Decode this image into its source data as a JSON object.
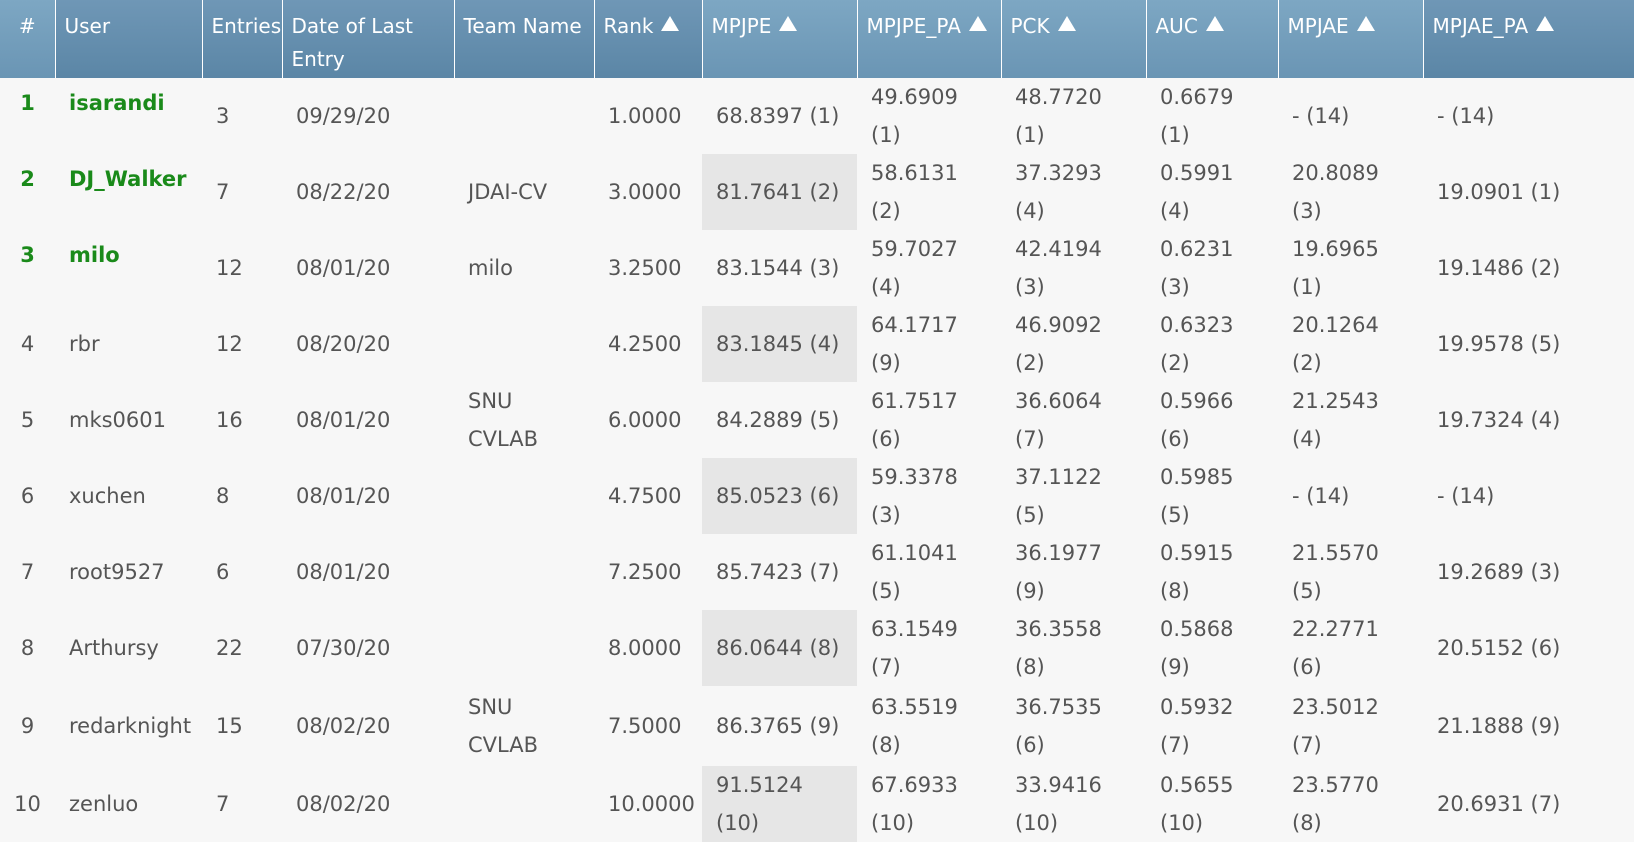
{
  "headers": [
    {
      "label": "#",
      "sortable": false
    },
    {
      "label": "User",
      "sortable": false
    },
    {
      "label": "Entries",
      "sortable": false
    },
    {
      "label": "Date of Last Entry",
      "sortable": false
    },
    {
      "label": "Team Name",
      "sortable": false
    },
    {
      "label": "Rank",
      "sortable": true
    },
    {
      "label": "MPJPE",
      "sortable": true
    },
    {
      "label": "MPJPE_PA",
      "sortable": true
    },
    {
      "label": "PCK",
      "sortable": true
    },
    {
      "label": "AUC",
      "sortable": true
    },
    {
      "label": "MPJAE",
      "sortable": true
    },
    {
      "label": "MPJAE_PA",
      "sortable": true
    }
  ],
  "rows": [
    {
      "num": "1",
      "user": "isarandi",
      "entries": "3",
      "date": "09/29/20",
      "team": "",
      "rank": "1.0000",
      "mpjpe": "68.8397 (1)",
      "mpjpe_pa": "49.6909 (1)",
      "pck": "48.7720 (1)",
      "auc": "0.6679 (1)",
      "mpjae": "- (14)",
      "mpjae_pa": "- (14)",
      "top": true
    },
    {
      "num": "2",
      "user": "DJ_Walker",
      "entries": "7",
      "date": "08/22/20",
      "team": "JDAI-CV",
      "rank": "3.0000",
      "mpjpe": "81.7641 (2)",
      "mpjpe_pa": "58.6131 (2)",
      "pck": "37.3293 (4)",
      "auc": "0.5991 (4)",
      "mpjae": "20.8089 (3)",
      "mpjae_pa": "19.0901 (1)",
      "top": true
    },
    {
      "num": "3",
      "user": "milo",
      "entries": "12",
      "date": "08/01/20",
      "team": "milo",
      "rank": "3.2500",
      "mpjpe": "83.1544 (3)",
      "mpjpe_pa": "59.7027 (4)",
      "pck": "42.4194 (3)",
      "auc": "0.6231 (3)",
      "mpjae": "19.6965 (1)",
      "mpjae_pa": "19.1486 (2)",
      "top": true
    },
    {
      "num": "4",
      "user": "rbr",
      "entries": "12",
      "date": "08/20/20",
      "team": "",
      "rank": "4.2500",
      "mpjpe": "83.1845 (4)",
      "mpjpe_pa": "64.1717 (9)",
      "pck": "46.9092 (2)",
      "auc": "0.6323 (2)",
      "mpjae": "20.1264 (2)",
      "mpjae_pa": "19.9578 (5)",
      "top": false
    },
    {
      "num": "5",
      "user": "mks0601",
      "entries": "16",
      "date": "08/01/20",
      "team": "SNU CVLAB",
      "rank": "6.0000",
      "mpjpe": "84.2889 (5)",
      "mpjpe_pa": "61.7517 (6)",
      "pck": "36.6064 (7)",
      "auc": "0.5966 (6)",
      "mpjae": "21.2543 (4)",
      "mpjae_pa": "19.7324 (4)",
      "top": false
    },
    {
      "num": "6",
      "user": "xuchen",
      "entries": "8",
      "date": "08/01/20",
      "team": "",
      "rank": "4.7500",
      "mpjpe": "85.0523 (6)",
      "mpjpe_pa": "59.3378 (3)",
      "pck": "37.1122 (5)",
      "auc": "0.5985 (5)",
      "mpjae": "- (14)",
      "mpjae_pa": "- (14)",
      "top": false
    },
    {
      "num": "7",
      "user": "root9527",
      "entries": "6",
      "date": "08/01/20",
      "team": "",
      "rank": "7.2500",
      "mpjpe": "85.7423 (7)",
      "mpjpe_pa": "61.1041 (5)",
      "pck": "36.1977 (9)",
      "auc": "0.5915 (8)",
      "mpjae": "21.5570 (5)",
      "mpjae_pa": "19.2689 (3)",
      "top": false
    },
    {
      "num": "8",
      "user": "Arthursy",
      "entries": "22",
      "date": "07/30/20",
      "team": "",
      "rank": "8.0000",
      "mpjpe": "86.0644 (8)",
      "mpjpe_pa": "63.1549 (7)",
      "pck": "36.3558 (8)",
      "auc": "0.5868 (9)",
      "mpjae": "22.2771 (6)",
      "mpjae_pa": "20.5152 (6)",
      "top": false
    },
    {
      "num": "9",
      "user": "redarknight",
      "entries": "15",
      "date": "08/02/20",
      "team": "SNU CVLAB",
      "rank": "7.5000",
      "mpjpe": "86.3765 (9)",
      "mpjpe_pa": "63.5519 (8)",
      "pck": "36.7535 (6)",
      "auc": "0.5932 (7)",
      "mpjae": "23.5012 (7)",
      "mpjae_pa": "21.1888 (9)",
      "top": false
    },
    {
      "num": "10",
      "user": "zenluo",
      "entries": "7",
      "date": "08/02/20",
      "team": "",
      "rank": "10.0000",
      "mpjpe": "91.5124 (10)",
      "mpjpe_pa": "67.6933 (10)",
      "pck": "33.9416 (10)",
      "auc": "0.5655 (10)",
      "mpjae": "23.5770 (8)",
      "mpjae_pa": "20.6931 (7)",
      "top": false
    }
  ],
  "colors": {
    "header_bg": "#6f97b6",
    "top_user": "#1a8a1a",
    "shaded_cell": "#e6e6e6",
    "body_bg": "#f7f7f7"
  }
}
